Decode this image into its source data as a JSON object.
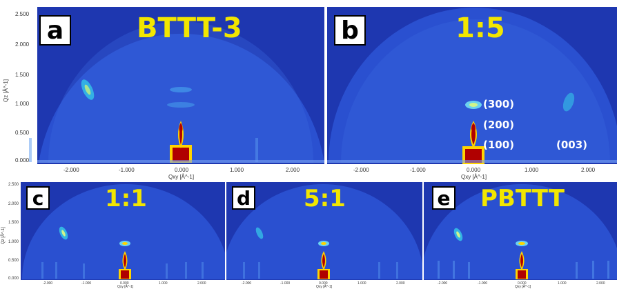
{
  "figure": {
    "colors": {
      "background": "#1b33a8",
      "dome": "#2a4fd0",
      "peak_core": "#b00000",
      "peak_ring": "#ffd400",
      "title": "#f2e600"
    },
    "panels": [
      {
        "letter": "a",
        "title": "BTTT-3",
        "y_axis_label": "Qz [Å^-1]",
        "x_axis_label": "Qxy [Å^-1]",
        "y_ticks": [
          "2.500",
          "2.000",
          "1.500",
          "1.000",
          "0.500",
          "0.000"
        ],
        "x_ticks": [
          "-2.000",
          "-1.000",
          "0.000",
          "1.000",
          "2.000"
        ],
        "peak_labels": []
      },
      {
        "letter": "b",
        "title": "1:5",
        "y_axis_label": "",
        "x_axis_label": "Qxy [Å^-1]",
        "y_ticks": [],
        "x_ticks": [
          "-2.000",
          "-1.000",
          "0.000",
          "1.000",
          "2.000"
        ],
        "peak_labels": [
          "(300)",
          "(200)",
          "(100)",
          "(003)"
        ]
      },
      {
        "letter": "c",
        "title": "1:1",
        "y_axis_label": "Qz [Å^-1]",
        "x_axis_label": "Qxy [Å^-1]",
        "y_ticks": [
          "2.500",
          "2.000",
          "1.500",
          "1.000",
          "0.500",
          "0.000"
        ],
        "x_ticks": [
          "-2.000",
          "-1.000",
          "0.000",
          "1.000",
          "2.000"
        ],
        "peak_labels": []
      },
      {
        "letter": "d",
        "title": "5:1",
        "y_axis_label": "",
        "x_axis_label": "Qxy [Å^-1]",
        "y_ticks": [],
        "x_ticks": [
          "-2.000",
          "-1.000",
          "0.000",
          "1.000",
          "2.000"
        ],
        "peak_labels": []
      },
      {
        "letter": "e",
        "title": "PBTTT",
        "y_axis_label": "",
        "x_axis_label": "Qxy [Å^-1]",
        "y_ticks": [],
        "x_ticks": [
          "-2.000",
          "-1.000",
          "0.000",
          "1.000",
          "2.000"
        ],
        "peak_labels": []
      }
    ]
  }
}
